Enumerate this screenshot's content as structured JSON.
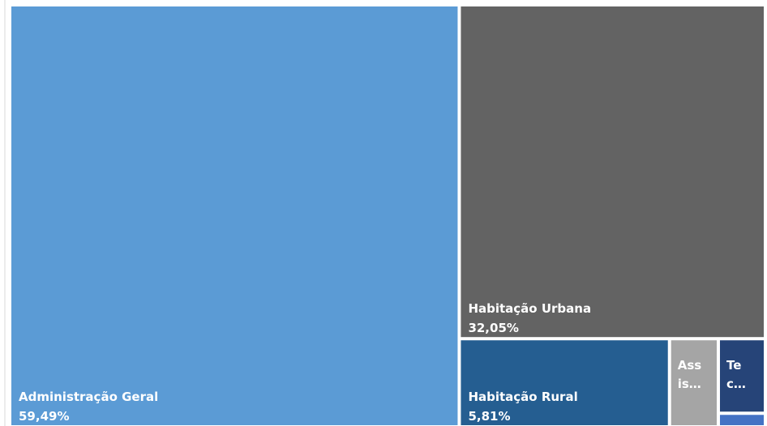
{
  "chart_data": {
    "type": "treemap",
    "categories": [
      "Administração Geral",
      "Habitação Urbana",
      "Habitação Rural",
      "Ass is…",
      "Te c…",
      null
    ],
    "values": [
      59.49,
      32.05,
      5.81,
      1.35,
      1.1,
      0.2
    ],
    "value_labels": [
      "59,49%",
      "32,05%",
      "5,81%",
      null,
      null,
      null
    ],
    "colors": [
      "#5b9bd5",
      "#636363",
      "#255e91",
      "#a5a5a5",
      "#264478",
      "#4472c4"
    ]
  }
}
